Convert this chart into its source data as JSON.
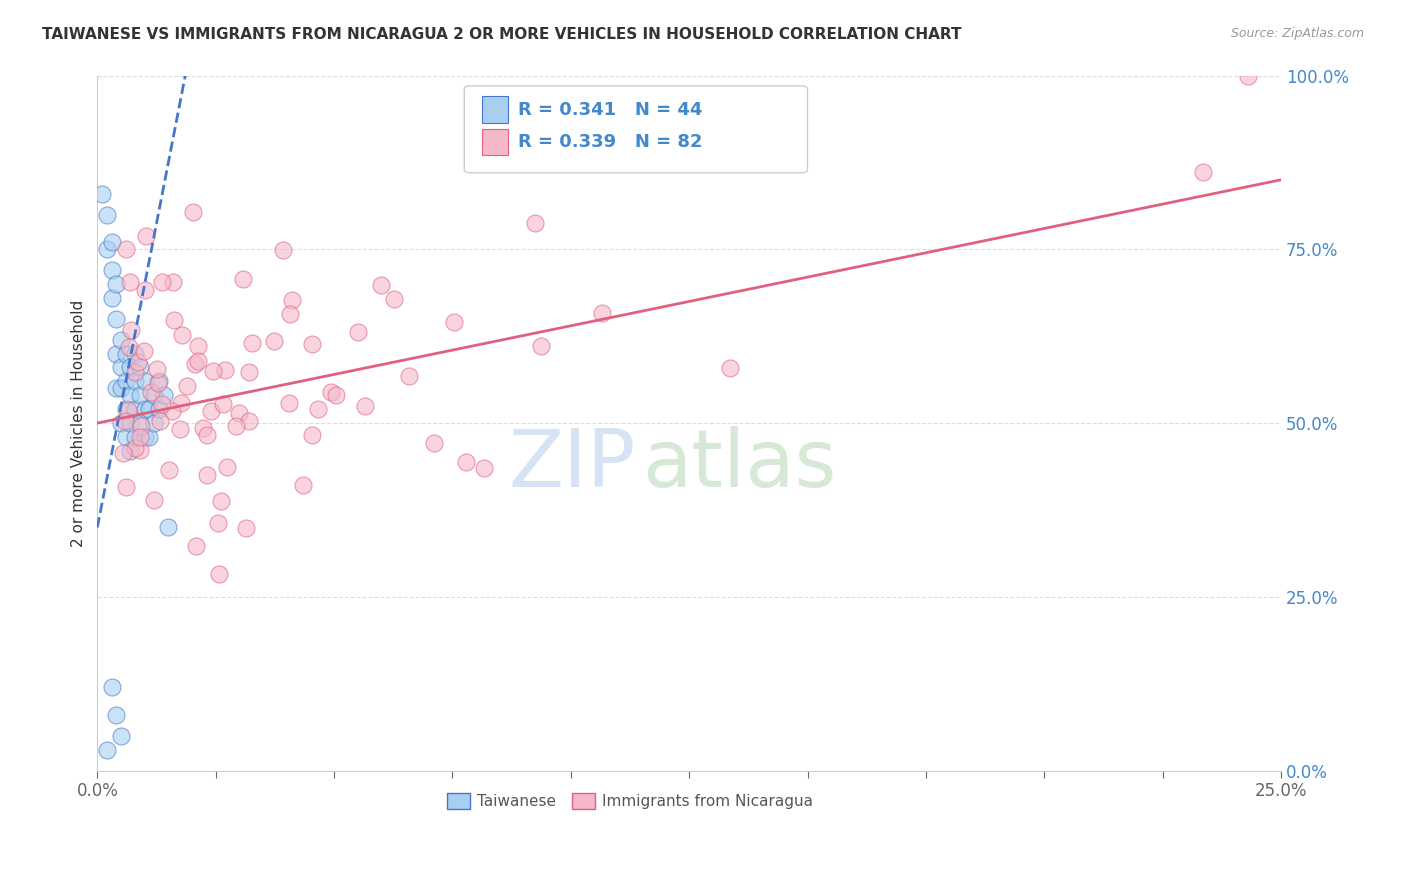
{
  "title": "TAIWANESE VS IMMIGRANTS FROM NICARAGUA 2 OR MORE VEHICLES IN HOUSEHOLD CORRELATION CHART",
  "source": "Source: ZipAtlas.com",
  "ylabel_left": "2 or more Vehicles in Household",
  "legend_labels": [
    "Taiwanese",
    "Immigrants from Nicaragua"
  ],
  "R_taiwanese": 0.341,
  "N_taiwanese": 44,
  "R_nicaragua": 0.339,
  "N_nicaragua": 82,
  "taiwanese_color": "#a8cff0",
  "nicaragua_color": "#f5b8c8",
  "trendline_blue": "#4477cc",
  "trendline_pink": "#e06080",
  "background_color": "#ffffff",
  "grid_color": "#dddddd",
  "x_min": 0.0,
  "x_max": 0.25,
  "y_min": 0.0,
  "y_max": 1.0,
  "right_tick_color": "#4488cc",
  "title_color": "#333333",
  "source_color": "#999999",
  "axis_label_color": "#333333",
  "tick_label_color": "#666666"
}
